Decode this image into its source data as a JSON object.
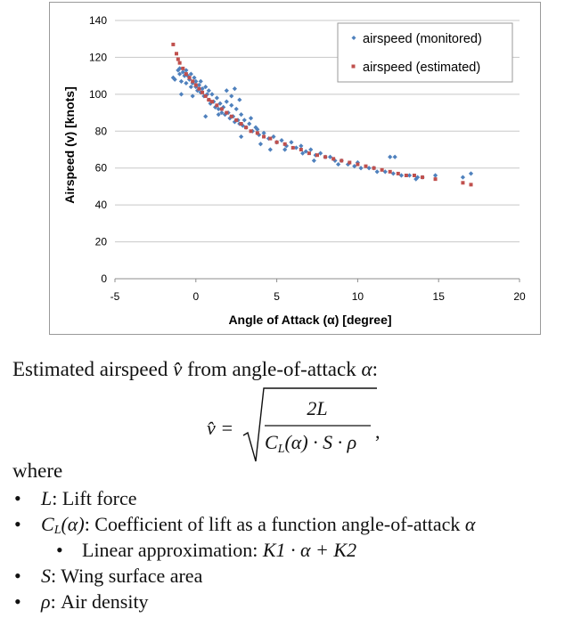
{
  "chart_data": {
    "type": "scatter",
    "xlabel": "Angle of Attack (α) [degree]",
    "ylabel": "Airspeed (v) [knots]",
    "xlim": [
      -5,
      20
    ],
    "ylim": [
      0,
      140
    ],
    "x_ticks": [
      "-5",
      "0",
      "5",
      "10",
      "15",
      "20"
    ],
    "y_ticks": [
      "0",
      "20",
      "40",
      "60",
      "80",
      "100",
      "120",
      "140"
    ],
    "grid": "horizontal",
    "legend_position": "top-right",
    "series": [
      {
        "name": "airspeed (monitored)",
        "color": "#4f81bd",
        "marker": "diamond",
        "points": [
          [
            -1.4,
            109
          ],
          [
            -1.3,
            108
          ],
          [
            -1.1,
            113
          ],
          [
            -1.0,
            114
          ],
          [
            -1.0,
            111
          ],
          [
            -0.9,
            107
          ],
          [
            -0.8,
            112
          ],
          [
            -0.7,
            110
          ],
          [
            -0.6,
            113
          ],
          [
            -0.6,
            106
          ],
          [
            -0.5,
            110
          ],
          [
            -0.4,
            108
          ],
          [
            -0.3,
            104
          ],
          [
            -0.3,
            111
          ],
          [
            -0.2,
            106
          ],
          [
            -0.1,
            109
          ],
          [
            0.0,
            104
          ],
          [
            0.0,
            107
          ],
          [
            0.1,
            102
          ],
          [
            0.2,
            105
          ],
          [
            0.3,
            101
          ],
          [
            0.3,
            107
          ],
          [
            0.4,
            103
          ],
          [
            0.5,
            99
          ],
          [
            0.6,
            104
          ],
          [
            0.7,
            100
          ],
          [
            0.8,
            97
          ],
          [
            0.8,
            102
          ],
          [
            0.9,
            95
          ],
          [
            1.0,
            100
          ],
          [
            1.1,
            96
          ],
          [
            1.2,
            93
          ],
          [
            1.3,
            98
          ],
          [
            1.4,
            92
          ],
          [
            1.5,
            95
          ],
          [
            1.6,
            90
          ],
          [
            1.7,
            93
          ],
          [
            1.8,
            89
          ],
          [
            1.9,
            96
          ],
          [
            2.0,
            90
          ],
          [
            2.1,
            87
          ],
          [
            2.2,
            94
          ],
          [
            2.3,
            88
          ],
          [
            2.4,
            85
          ],
          [
            2.5,
            92
          ],
          [
            2.6,
            86
          ],
          [
            2.7,
            84
          ],
          [
            2.8,
            89
          ],
          [
            2.9,
            83
          ],
          [
            3.0,
            86
          ],
          [
            3.1,
            82
          ],
          [
            3.3,
            84
          ],
          [
            3.5,
            80
          ],
          [
            3.7,
            82
          ],
          [
            3.9,
            78
          ],
          [
            4.2,
            79
          ],
          [
            4.5,
            76
          ],
          [
            4.8,
            77
          ],
          [
            5.0,
            74
          ],
          [
            5.3,
            75
          ],
          [
            5.6,
            72
          ],
          [
            5.9,
            74
          ],
          [
            6.2,
            71
          ],
          [
            6.5,
            72
          ],
          [
            6.8,
            69
          ],
          [
            7.1,
            70
          ],
          [
            7.4,
            67
          ],
          [
            7.7,
            68
          ],
          [
            8.0,
            66
          ],
          [
            8.3,
            66
          ],
          [
            8.6,
            64
          ],
          [
            9.0,
            64
          ],
          [
            9.4,
            62
          ],
          [
            9.8,
            61
          ],
          [
            10.2,
            60
          ],
          [
            10.7,
            60
          ],
          [
            11.2,
            58
          ],
          [
            11.7,
            58
          ],
          [
            12.2,
            57
          ],
          [
            12.7,
            56
          ],
          [
            13.2,
            56
          ],
          [
            13.7,
            55
          ],
          [
            14.0,
            55
          ],
          [
            14.8,
            56
          ],
          [
            16.5,
            55
          ],
          [
            17.0,
            57
          ],
          [
            -0.9,
            100
          ],
          [
            -0.2,
            99
          ],
          [
            1.9,
            102
          ],
          [
            2.4,
            103
          ],
          [
            2.7,
            97
          ],
          [
            2.2,
            99
          ],
          [
            3.4,
            87
          ],
          [
            2.8,
            77
          ],
          [
            4.0,
            73
          ],
          [
            4.6,
            70
          ],
          [
            5.5,
            70
          ],
          [
            12.0,
            66
          ],
          [
            12.3,
            66
          ],
          [
            11.0,
            60
          ],
          [
            10.0,
            63
          ],
          [
            0.6,
            88
          ],
          [
            1.4,
            89
          ],
          [
            3.8,
            81
          ],
          [
            6.6,
            68
          ],
          [
            8.8,
            62
          ],
          [
            7.3,
            64
          ],
          [
            13.6,
            54
          ]
        ]
      },
      {
        "name": "airspeed (estimated)",
        "color": "#c0504d",
        "marker": "square",
        "points": [
          [
            -1.4,
            127
          ],
          [
            -1.2,
            122
          ],
          [
            -1.1,
            119
          ],
          [
            -1.0,
            117
          ],
          [
            -0.8,
            114
          ],
          [
            -0.6,
            111
          ],
          [
            -0.4,
            109
          ],
          [
            -0.2,
            107
          ],
          [
            0.0,
            105
          ],
          [
            0.2,
            103
          ],
          [
            0.4,
            101
          ],
          [
            0.6,
            99
          ],
          [
            0.8,
            97
          ],
          [
            1.0,
            96
          ],
          [
            1.3,
            94
          ],
          [
            1.6,
            92
          ],
          [
            1.9,
            90
          ],
          [
            2.2,
            88
          ],
          [
            2.5,
            86
          ],
          [
            2.8,
            84
          ],
          [
            3.1,
            82
          ],
          [
            3.4,
            80
          ],
          [
            3.8,
            79
          ],
          [
            4.2,
            77
          ],
          [
            4.6,
            76
          ],
          [
            5.0,
            74
          ],
          [
            5.5,
            73
          ],
          [
            6.0,
            71
          ],
          [
            6.5,
            70
          ],
          [
            7.0,
            68
          ],
          [
            7.5,
            67
          ],
          [
            8.0,
            66
          ],
          [
            8.5,
            65
          ],
          [
            9.0,
            64
          ],
          [
            9.5,
            63
          ],
          [
            10.0,
            62
          ],
          [
            10.5,
            61
          ],
          [
            11.0,
            60
          ],
          [
            11.5,
            59
          ],
          [
            12.0,
            58
          ],
          [
            12.5,
            57
          ],
          [
            13.0,
            56
          ],
          [
            13.5,
            56
          ],
          [
            14.0,
            55
          ],
          [
            14.8,
            54
          ],
          [
            16.5,
            52
          ],
          [
            17.0,
            51
          ]
        ]
      }
    ]
  },
  "text": {
    "intro_a": "Estimated airspeed ",
    "intro_vhat": "v̂",
    "intro_b": " from angle-of-attack ",
    "intro_alpha": "α",
    "intro_colon": ":",
    "formula_lhs": "v̂ =",
    "formula_num": "2L",
    "formula_den": "Cₗ(α) · S · ρ",
    "formula_den_c": "C",
    "formula_den_sub": "L",
    "formula_den_rest": "(α) · S · ρ",
    "formula_comma": ",",
    "where": "where",
    "bullets": [
      {
        "sym": "L",
        "text": ": Lift force"
      },
      {
        "sym": "C",
        "sub": "L",
        "arg": "(α)",
        "text": ": Coefficient of lift as a function angle-of-attack ",
        "tail": "α"
      },
      {
        "text": "Linear approximation: ",
        "math": "K1 · α + K2"
      },
      {
        "sym": "S",
        "text": ": Wing surface area"
      },
      {
        "sym": "ρ",
        "text": ": Air density"
      }
    ],
    "bullet_glyph": "•"
  }
}
